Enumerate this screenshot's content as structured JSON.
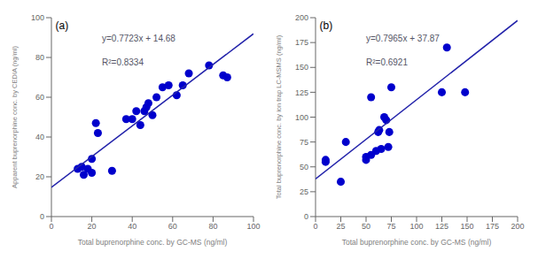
{
  "chart_data": [
    {
      "type": "scatter",
      "title": "(a)",
      "annotations": [
        "y=0.7723x + 14.68",
        "R²=0.8334"
      ],
      "xlabel": "Total buprenorphine conc. by GC-MS (ng/ml)",
      "ylabel": "Apparent buprenorphine conc. by CEDIA (ng/ml)",
      "xlim": [
        0,
        100
      ],
      "ylim": [
        0,
        100
      ],
      "xticks": [
        0,
        20,
        40,
        60,
        80,
        100
      ],
      "yticks": [
        0,
        20,
        40,
        60,
        80,
        100
      ],
      "grid": false,
      "series": [
        {
          "type": "scatter",
          "color": "#0000CC",
          "marker": "circle",
          "x": [
            13,
            15,
            16,
            18,
            20,
            20,
            22,
            23,
            30,
            37,
            40,
            42,
            44,
            46,
            47,
            48,
            50,
            52,
            55,
            58,
            62,
            65,
            68,
            78,
            85,
            87
          ],
          "values": [
            24,
            25,
            21,
            24,
            29,
            22,
            47,
            42,
            23,
            49,
            49,
            53,
            46,
            53,
            55,
            57,
            51,
            60,
            65,
            66,
            61,
            66,
            72,
            76,
            71,
            70
          ]
        },
        {
          "type": "line",
          "color": "#2222AA",
          "line_style": "solid",
          "x": [
            0,
            100
          ],
          "values": [
            14.68,
            91.91
          ]
        }
      ]
    },
    {
      "type": "scatter",
      "title": "(b)",
      "annotations": [
        "y=0.7965x + 37.87",
        "R²=0.6921"
      ],
      "xlabel": "Total buprenorphine conc. by GC-MS (ng/ml)",
      "ylabel": "Total buprenorphine conc. by ion trap LC-MSMS (ng/ml)",
      "xlim": [
        0,
        200
      ],
      "ylim": [
        0,
        200
      ],
      "xticks": [
        0,
        25,
        50,
        75,
        100,
        125,
        150,
        175,
        200
      ],
      "yticks": [
        0,
        25,
        50,
        75,
        100,
        125,
        150,
        175,
        200
      ],
      "grid": false,
      "series": [
        {
          "type": "scatter",
          "color": "#0000CC",
          "marker": "circle",
          "x": [
            10,
            10,
            25,
            30,
            50,
            50,
            55,
            55,
            60,
            62,
            63,
            65,
            68,
            70,
            72,
            73,
            75,
            125,
            130,
            148
          ],
          "values": [
            55,
            57,
            35,
            75,
            60,
            57,
            120,
            62,
            66,
            85,
            87,
            68,
            100,
            97,
            70,
            85,
            130,
            125,
            170,
            125
          ]
        },
        {
          "type": "line",
          "color": "#2222AA",
          "line_style": "solid",
          "x": [
            0,
            200
          ],
          "values": [
            37.87,
            197.17
          ]
        }
      ]
    }
  ]
}
